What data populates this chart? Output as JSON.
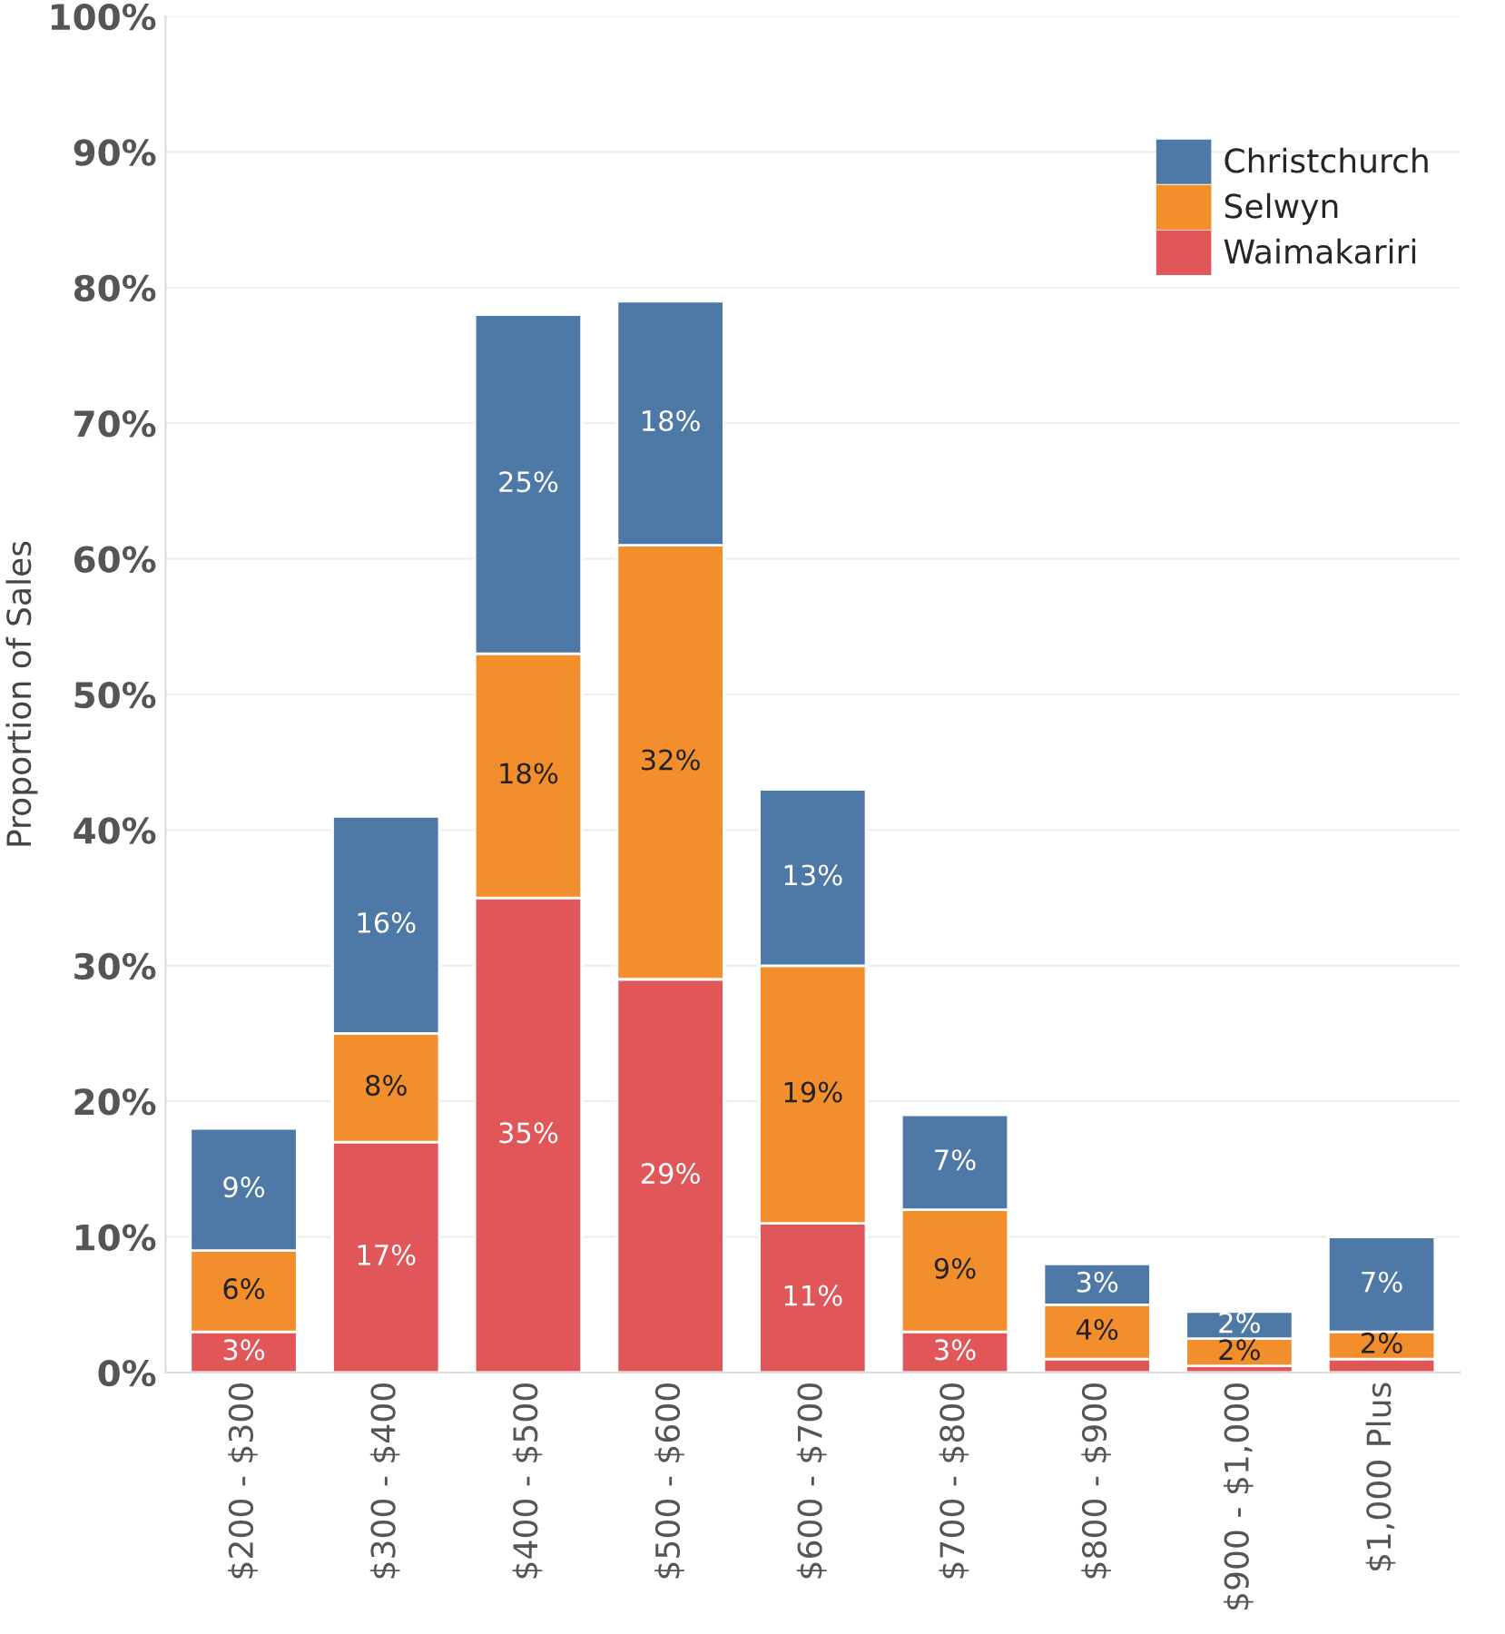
{
  "chart_data": {
    "type": "bar",
    "stacked": true,
    "ylabel": "Proportion of Sales",
    "categories": [
      "$200 - $300",
      "$300 - $400",
      "$400 - $500",
      "$500 - $600",
      "$600 - $700",
      "$700 - $800",
      "$800 - $900",
      "$900 - $1,000",
      "$1,000 Plus"
    ],
    "series": [
      {
        "name": "Waimakariri",
        "color": "#e15759",
        "values": [
          3,
          17,
          35,
          29,
          11,
          3,
          1,
          0.5,
          1
        ],
        "value_labels": [
          "3%",
          "17%",
          "35%",
          "29%",
          "11%",
          "3%",
          null,
          null,
          null
        ]
      },
      {
        "name": "Selwyn",
        "color": "#f28e2b",
        "values": [
          6,
          8,
          18,
          32,
          19,
          9,
          4,
          2,
          2
        ],
        "value_labels": [
          "6%",
          "8%",
          "18%",
          "32%",
          "19%",
          "9%",
          "4%",
          "2%",
          "2%"
        ]
      },
      {
        "name": "Christchurch",
        "color": "#4e79a7",
        "values": [
          9,
          16,
          25,
          18,
          13,
          7,
          3,
          2,
          7
        ],
        "value_labels": [
          "9%",
          "16%",
          "25%",
          "18%",
          "13%",
          "7%",
          "3%",
          "2%",
          "7%"
        ]
      }
    ],
    "ylim": [
      0,
      100
    ],
    "yticks": [
      {
        "value": 0,
        "label": "0%"
      },
      {
        "value": 10,
        "label": "10%"
      },
      {
        "value": 20,
        "label": "20%"
      },
      {
        "value": 30,
        "label": "30%"
      },
      {
        "value": 40,
        "label": "40%"
      },
      {
        "value": 50,
        "label": "50%"
      },
      {
        "value": 60,
        "label": "60%"
      },
      {
        "value": 70,
        "label": "70%"
      },
      {
        "value": 80,
        "label": "80%"
      },
      {
        "value": 90,
        "label": "90%"
      },
      {
        "value": 100,
        "label": "100%"
      }
    ],
    "grid": "y",
    "legend": "top right"
  }
}
